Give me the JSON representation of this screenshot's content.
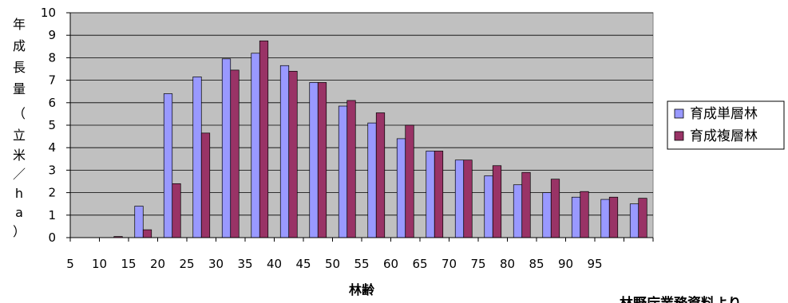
{
  "chart_data": {
    "type": "bar",
    "categories": [
      "5",
      "10",
      "15",
      "20",
      "25",
      "30",
      "35",
      "40",
      "45",
      "50",
      "55",
      "60",
      "65",
      "70",
      "75",
      "80",
      "85",
      "90",
      "95",
      ""
    ],
    "series": [
      {
        "name": "育成単層林",
        "color": "#9999ff",
        "values": [
          0,
          0,
          1.4,
          6.4,
          7.15,
          7.95,
          8.2,
          7.65,
          6.9,
          5.85,
          5.1,
          4.4,
          3.85,
          3.45,
          2.75,
          2.35,
          2.0,
          1.8,
          1.7,
          1.5
        ]
      },
      {
        "name": "育成複層林",
        "color": "#993366",
        "values": [
          0,
          0.05,
          0.35,
          2.4,
          4.65,
          7.45,
          8.75,
          7.4,
          6.9,
          6.1,
          5.55,
          5.0,
          3.85,
          3.45,
          3.2,
          2.9,
          2.6,
          2.05,
          1.8,
          1.75
        ]
      }
    ],
    "y_ticks": [
      "0",
      "1",
      "2",
      "3",
      "4",
      "5",
      "6",
      "7",
      "8",
      "9",
      "10"
    ],
    "ylim": [
      0,
      10
    ],
    "xlabel": "林齢",
    "ylabel_chars": [
      "年",
      "成",
      "長",
      "量",
      "（",
      "立",
      "米",
      "／",
      "h",
      "a",
      "）"
    ],
    "source_note": "林野庁業務資料より",
    "grid": true,
    "plot_background": "#c0c0c0",
    "legend_position": "right"
  }
}
